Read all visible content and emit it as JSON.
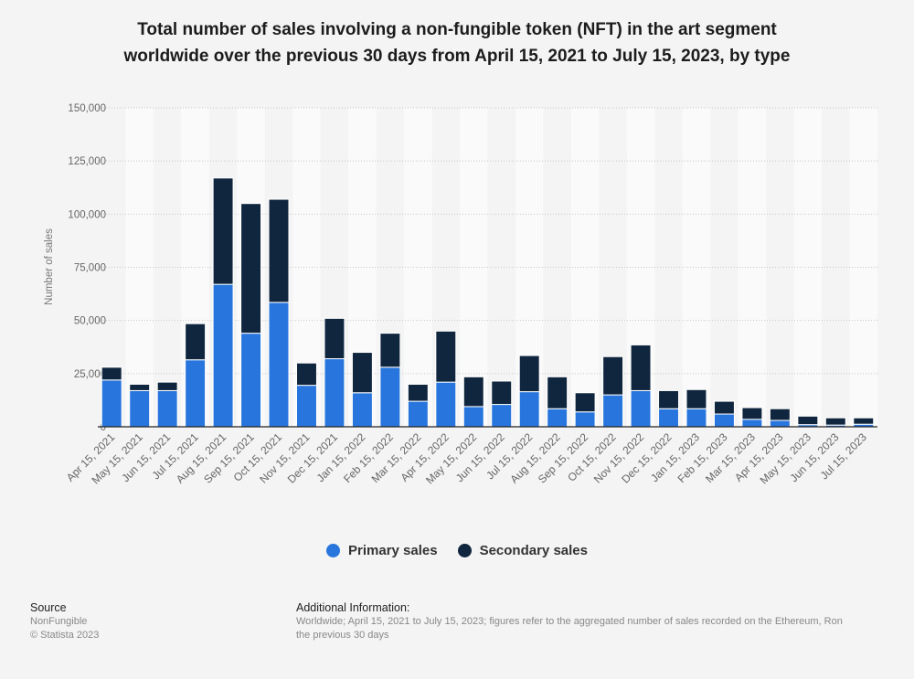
{
  "title_line1": "Total number of sales involving a non-fungible token (NFT) in the art segment",
  "title_line2": "worldwide over the previous 30 days from April 15, 2021 to July 15, 2023, by type",
  "legend": [
    {
      "label": "Primary sales",
      "color": "#2876dd"
    },
    {
      "label": "Secondary sales",
      "color": "#10263e"
    }
  ],
  "footer": {
    "source_heading": "Source",
    "source_name": "NonFungible",
    "copyright": "© Statista 2023",
    "info_heading": "Additional Information:",
    "info_line1": "Worldwide; April 15, 2021 to July 15, 2023; figures refer to the aggregated number of sales recorded on the Ethereum, Ron",
    "info_line2": "the previous 30 days"
  },
  "chart_data": {
    "type": "bar",
    "stacked": true,
    "title": "Total number of sales involving a non-fungible token (NFT) in the art segment worldwide over the previous 30 days from April 15, 2021 to July 15, 2023, by type",
    "xlabel": "",
    "ylabel": "Number of sales",
    "ylim": [
      0,
      150000
    ],
    "yticks": [
      0,
      25000,
      50000,
      75000,
      100000,
      125000,
      150000
    ],
    "ytick_labels": [
      "0",
      "25,000",
      "50,000",
      "75,000",
      "100,000",
      "125,000",
      "150,000"
    ],
    "grid": true,
    "legend_position": "bottom",
    "categories": [
      "Apr 15, 2021",
      "May 15, 2021",
      "Jun 15, 2021",
      "Jul 15, 2021",
      "Aug 15, 2021",
      "Sep 15, 2021",
      "Oct 15, 2021",
      "Nov 15, 2021",
      "Dec 15, 2021",
      "Jan 15, 2022",
      "Feb 15, 2022",
      "Mar 15, 2022",
      "Apr 15, 2022",
      "May 15, 2022",
      "Jun 15, 2022",
      "Jul 15, 2022",
      "Aug 15, 2022",
      "Sep 15, 2022",
      "Oct 15, 2022",
      "Nov 15, 2022",
      "Dec 15, 2022",
      "Jan 15, 2023",
      "Feb 15, 2023",
      "Mar 15, 2023",
      "Apr 15, 2023",
      "May 15, 2023",
      "Jun 15, 2023",
      "Jul 15, 2023"
    ],
    "series": [
      {
        "name": "Primary sales",
        "color": "#2876dd",
        "values": [
          22000,
          17000,
          17000,
          31500,
          67000,
          44000,
          58500,
          19500,
          32000,
          16000,
          28000,
          12000,
          21000,
          9500,
          10500,
          16500,
          8500,
          7000,
          15000,
          17000,
          8500,
          8500,
          6000,
          3500,
          3000,
          1000,
          800,
          1200
        ]
      },
      {
        "name": "Secondary sales",
        "color": "#10263e",
        "values": [
          6000,
          3000,
          4000,
          17000,
          50000,
          61000,
          48500,
          10500,
          19000,
          19000,
          16000,
          8000,
          24000,
          14000,
          11000,
          17000,
          15000,
          9000,
          18000,
          21500,
          8500,
          9000,
          6000,
          5500,
          5500,
          4000,
          3400,
          3000
        ]
      }
    ]
  }
}
